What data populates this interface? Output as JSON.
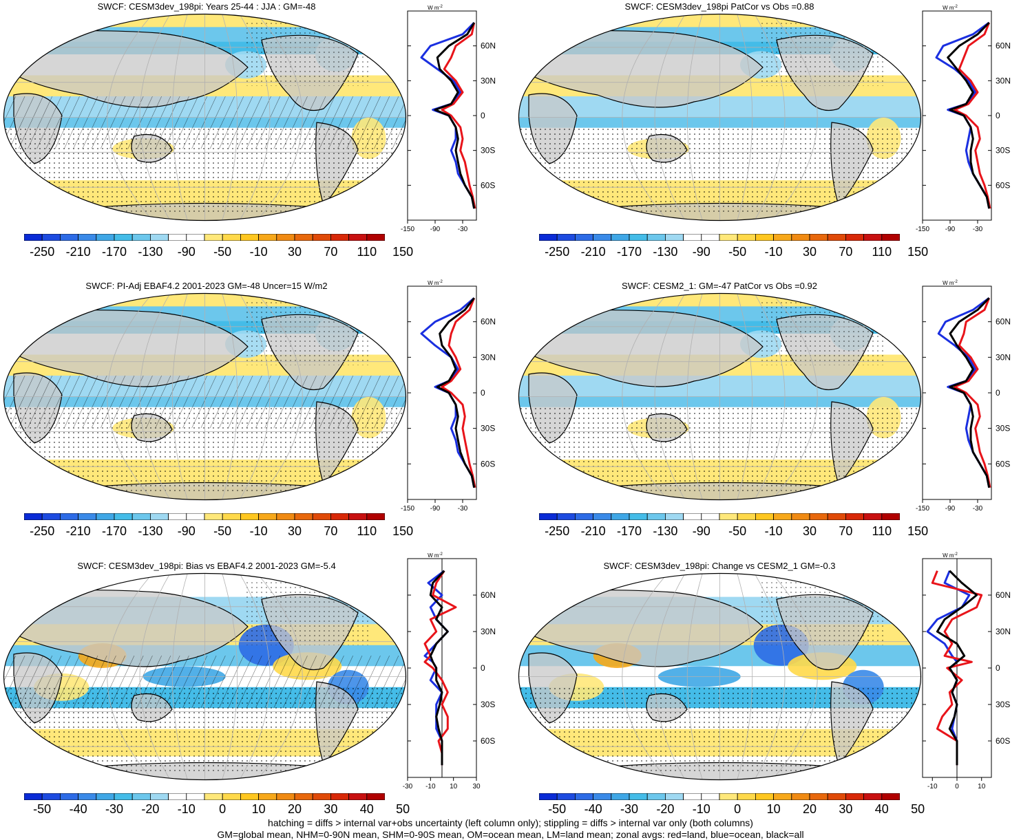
{
  "panels": [
    {
      "title": "SWCF: CESM3dev_198pi: Years 25-44 : JJA : GM=-48",
      "zonal_xticks": [
        "-150",
        "-90",
        "-30"
      ],
      "zonal_xrange": [
        -150,
        0
      ],
      "cbar": "abs"
    },
    {
      "title": "SWCF: CESM3dev_198pi PatCor vs Obs =0.88",
      "zonal_xticks": [
        "-150",
        "-90",
        "-30"
      ],
      "zonal_xrange": [
        -150,
        0
      ],
      "cbar": "abs"
    },
    {
      "title": "SWCF: PI-Adj EBAF4.2 2001-2023 GM=-48 Uncer=15 W/m2",
      "zonal_xticks": [
        "-150",
        "-90",
        "-30"
      ],
      "zonal_xrange": [
        -150,
        0
      ],
      "cbar": "abs"
    },
    {
      "title": "SWCF: CESM2_1: GM=-47 PatCor vs Obs =0.92",
      "zonal_xticks": [
        "-150",
        "-90",
        "-30"
      ],
      "zonal_xrange": [
        -150,
        0
      ],
      "cbar": "abs"
    },
    {
      "title": "SWCF: CESM3dev_198pi: Bias vs EBAF4.2 2001-2023 GM=-5.4",
      "zonal_xticks": [
        "-30",
        "-10",
        "10",
        "30"
      ],
      "zonal_xrange": [
        -30,
        30
      ],
      "cbar": "diff"
    },
    {
      "title": "SWCF: CESM3dev_198pi: Change vs CESM2_1 GM=-0.3",
      "zonal_xticks": [
        "-10",
        "0",
        "10"
      ],
      "zonal_xrange": [
        -14,
        14
      ],
      "cbar": "diff"
    }
  ],
  "zonal_units": "W m",
  "zonal_units_sup": "-2",
  "lat_labels": [
    "60N",
    "30N",
    "0",
    "30S",
    "60S"
  ],
  "colorbars": {
    "abs": {
      "labels": [
        "-250",
        "-210",
        "-170",
        "-130",
        "-90",
        "-50",
        "-10",
        "30",
        "70",
        "110",
        "150"
      ],
      "colors": [
        "#0a2bd6",
        "#1d4be0",
        "#2d6be6",
        "#3a8ae8",
        "#3fa7e6",
        "#44bce8",
        "#6cc7ec",
        "#9fd9f2",
        "#ffffff",
        "#ffffff",
        "#ffe87a",
        "#ffd94a",
        "#ffc720",
        "#f7a81a",
        "#f08a12",
        "#e8680c",
        "#e04a08",
        "#d82808",
        "#c81010",
        "#b00000"
      ]
    },
    "diff": {
      "labels": [
        "-50",
        "-40",
        "-30",
        "-20",
        "-10",
        "0",
        "10",
        "20",
        "30",
        "40",
        "50"
      ],
      "colors": [
        "#0a2bd6",
        "#1d4be0",
        "#2d6be6",
        "#3a8ae8",
        "#3fa7e6",
        "#44bce8",
        "#6cc7ec",
        "#9fd9f2",
        "#ffffff",
        "#ffffff",
        "#ffe87a",
        "#ffd94a",
        "#ffc720",
        "#f7a81a",
        "#f08a12",
        "#e8680c",
        "#e04a08",
        "#d82808",
        "#c81010",
        "#b00000"
      ]
    }
  },
  "legend_colors": {
    "land": "#e8141a",
    "ocean": "#1a2fe0",
    "all": "#000000"
  },
  "footer": {
    "line1": "hatching = diffs > internal var+obs uncertainty (left column only); stippling = diffs > internal var only (both columns)",
    "line2": "GM=global mean, NHM=0-90N mean, SHM=0-90S mean, OM=ocean mean, LM=land mean; zonal avgs: red=land, blue=ocean, black=all"
  },
  "chart_data": [
    {
      "type": "heatmap",
      "title": "SWCF: CESM3dev_198pi: Years 25-44 : JJA : GM=-48",
      "colorbar_ticks": [
        -250,
        -210,
        -170,
        -130,
        -90,
        -50,
        -10,
        30,
        70,
        110,
        150
      ],
      "zonal_mean": {
        "xlim": [
          -150,
          0
        ],
        "lat": [
          80,
          70,
          60,
          50,
          40,
          30,
          20,
          10,
          5,
          0,
          -10,
          -20,
          -30,
          -40,
          -50,
          -60,
          -70,
          -80
        ],
        "all": [
          -5,
          -20,
          -60,
          -85,
          -80,
          -55,
          -40,
          -55,
          -90,
          -60,
          -45,
          -40,
          -45,
          -40,
          -35,
          -25,
          -10,
          -5
        ],
        "ocean": [
          -5,
          -30,
          -100,
          -120,
          -85,
          -50,
          -35,
          -55,
          -95,
          -60,
          -45,
          -45,
          -55,
          -45,
          -40,
          -25,
          -10,
          -5
        ],
        "land": [
          -5,
          -10,
          -45,
          -55,
          -70,
          -45,
          -30,
          -50,
          -75,
          -55,
          -35,
          -30,
          -35,
          -25,
          -20,
          -15,
          -8,
          -3
        ]
      }
    },
    {
      "type": "heatmap",
      "title": "SWCF: CESM3dev_198pi PatCor vs Obs =0.88",
      "colorbar_ticks": [
        -250,
        -210,
        -170,
        -130,
        -90,
        -50,
        -10,
        30,
        70,
        110,
        150
      ],
      "zonal_mean": {
        "xlim": [
          -150,
          0
        ],
        "lat": [
          80,
          70,
          60,
          50,
          40,
          30,
          20,
          10,
          5,
          0,
          -10,
          -20,
          -30,
          -40,
          -50,
          -60,
          -70,
          -80
        ],
        "all": [
          -5,
          -30,
          -70,
          -95,
          -75,
          -55,
          -40,
          -55,
          -90,
          -60,
          -45,
          -40,
          -45,
          -45,
          -40,
          -25,
          -10,
          -5
        ],
        "ocean": [
          -5,
          -40,
          -105,
          -120,
          -80,
          -50,
          -35,
          -55,
          -95,
          -60,
          -45,
          -50,
          -55,
          -50,
          -40,
          -25,
          -10,
          -5
        ],
        "land": [
          -5,
          -15,
          -50,
          -60,
          -70,
          -45,
          -30,
          -50,
          -80,
          -55,
          -30,
          -25,
          -35,
          -30,
          -25,
          -15,
          -8,
          -3
        ]
      }
    },
    {
      "type": "heatmap",
      "title": "SWCF: PI-Adj EBAF4.2 2001-2023 GM=-48 Uncer=15 W/m2",
      "colorbar_ticks": [
        -250,
        -210,
        -170,
        -130,
        -90,
        -50,
        -10,
        30,
        70,
        110,
        150
      ],
      "zonal_mean": {
        "xlim": [
          -150,
          0
        ],
        "lat": [
          80,
          70,
          60,
          50,
          40,
          30,
          20,
          10,
          5,
          0,
          -10,
          -20,
          -30,
          -40,
          -50,
          -60,
          -70,
          -80
        ],
        "all": [
          -5,
          -25,
          -60,
          -80,
          -75,
          -55,
          -45,
          -60,
          -85,
          -60,
          -45,
          -40,
          -45,
          -40,
          -35,
          -25,
          -10,
          -5
        ],
        "ocean": [
          -5,
          -35,
          -90,
          -120,
          -90,
          -55,
          -40,
          -60,
          -90,
          -60,
          -45,
          -45,
          -55,
          -45,
          -40,
          -25,
          -10,
          -5
        ],
        "land": [
          -5,
          -15,
          -45,
          -55,
          -60,
          -45,
          -35,
          -55,
          -75,
          -55,
          -30,
          -25,
          -30,
          -25,
          -20,
          -15,
          -8,
          -3
        ]
      }
    },
    {
      "type": "heatmap",
      "title": "SWCF: CESM2_1: GM=-47 PatCor vs Obs =0.92",
      "colorbar_ticks": [
        -250,
        -210,
        -170,
        -130,
        -90,
        -50,
        -10,
        30,
        70,
        110,
        150
      ],
      "zonal_mean": {
        "xlim": [
          -150,
          0
        ],
        "lat": [
          80,
          70,
          60,
          50,
          40,
          30,
          20,
          10,
          5,
          0,
          -10,
          -20,
          -30,
          -40,
          -50,
          -60,
          -70,
          -80
        ],
        "all": [
          -5,
          -30,
          -70,
          -90,
          -75,
          -55,
          -40,
          -55,
          -90,
          -60,
          -45,
          -40,
          -45,
          -45,
          -40,
          -25,
          -10,
          -5
        ],
        "ocean": [
          -5,
          -40,
          -100,
          -115,
          -80,
          -50,
          -35,
          -55,
          -95,
          -60,
          -45,
          -50,
          -55,
          -50,
          -40,
          -25,
          -10,
          -5
        ],
        "land": [
          -5,
          -15,
          -55,
          -60,
          -70,
          -45,
          -30,
          -50,
          -80,
          -55,
          -30,
          -25,
          -35,
          -30,
          -25,
          -15,
          -8,
          -3
        ]
      }
    },
    {
      "type": "heatmap",
      "title": "SWCF: CESM3dev_198pi: Bias vs EBAF4.2 2001-2023 GM=-5.4",
      "colorbar_ticks": [
        -50,
        -40,
        -30,
        -20,
        -10,
        0,
        10,
        20,
        30,
        40,
        50
      ],
      "zonal_mean": {
        "xlim": [
          -30,
          30
        ],
        "lat": [
          80,
          70,
          60,
          50,
          40,
          30,
          20,
          10,
          5,
          0,
          -10,
          -20,
          -30,
          -40,
          -50,
          -60,
          -70,
          -80
        ],
        "all": [
          2,
          -8,
          -10,
          0,
          -5,
          5,
          -5,
          -10,
          -8,
          -5,
          -5,
          0,
          -2,
          -5,
          -3,
          0,
          0,
          0
        ],
        "ocean": [
          2,
          -12,
          0,
          -10,
          -5,
          5,
          -5,
          -15,
          -8,
          -5,
          -10,
          0,
          -5,
          -5,
          -5,
          0,
          0,
          0
        ],
        "land": [
          2,
          -5,
          -8,
          12,
          -10,
          -5,
          -15,
          -10,
          -15,
          -8,
          0,
          5,
          0,
          5,
          5,
          -3,
          0,
          0
        ]
      }
    },
    {
      "type": "heatmap",
      "title": "SWCF: CESM3dev_198pi: Change vs CESM2_1 GM=-0.3",
      "colorbar_ticks": [
        -50,
        -40,
        -30,
        -20,
        -10,
        0,
        10,
        20,
        30,
        40,
        50
      ],
      "zonal_mean": {
        "xlim": [
          -14,
          14
        ],
        "lat": [
          80,
          70,
          60,
          50,
          40,
          30,
          20,
          10,
          5,
          0,
          -10,
          -20,
          -30,
          -40,
          -50,
          -60,
          -70,
          -80
        ],
        "all": [
          -3,
          2,
          8,
          2,
          -5,
          -8,
          0,
          3,
          0,
          -3,
          0,
          -2,
          0,
          -1,
          -3,
          0,
          0,
          0
        ],
        "ocean": [
          -3,
          -5,
          5,
          2,
          -8,
          -12,
          -5,
          -2,
          0,
          -3,
          0,
          -2,
          0,
          -1,
          -2,
          0,
          0,
          0
        ],
        "land": [
          -8,
          -10,
          10,
          8,
          -2,
          -5,
          -2,
          -5,
          6,
          -4,
          2,
          -3,
          -2,
          -6,
          -8,
          0,
          0,
          0
        ]
      }
    }
  ]
}
